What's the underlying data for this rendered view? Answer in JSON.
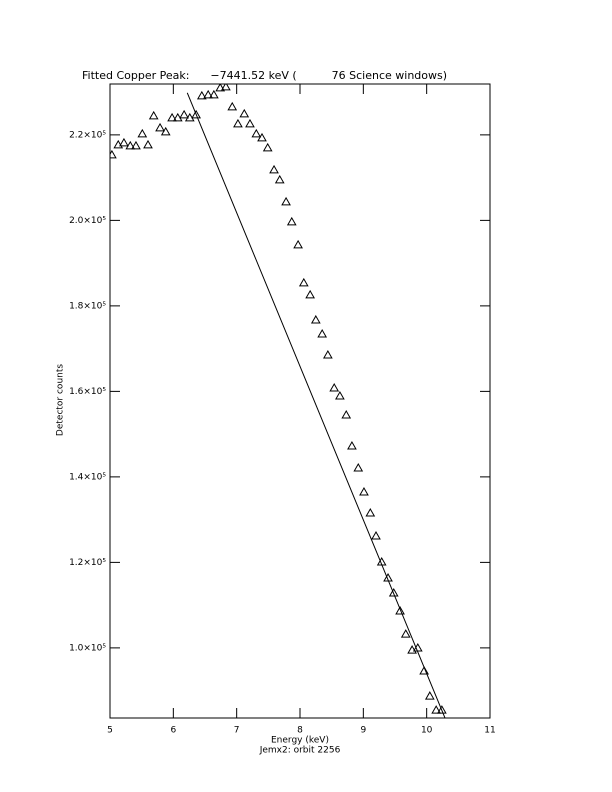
{
  "chart_data": {
    "type": "scatter",
    "title": "Fitted Copper Peak:      −7441.52 keV (          76 Science windows)",
    "xlabel": "Energy (keV)",
    "subtitle": "Jemx2: orbit 2256",
    "ylabel": "Detector counts",
    "xlim": [
      5,
      11
    ],
    "xticks": [
      5,
      6,
      7,
      8,
      9,
      10,
      11
    ],
    "ylim": [
      83600,
      231900
    ],
    "yticks": [
      {
        "value": 100000,
        "label": "1.0×10⁵"
      },
      {
        "value": 120000,
        "label": "1.2×10⁵"
      },
      {
        "value": 140000,
        "label": "1.4×10⁵"
      },
      {
        "value": 160000,
        "label": "1.6×10⁵"
      },
      {
        "value": 180000,
        "label": "1.8×10⁵"
      },
      {
        "value": 200000,
        "label": "2.0×10⁵"
      },
      {
        "value": 220000,
        "label": "2.2×10⁵"
      }
    ],
    "series": [
      {
        "style": "triangle",
        "color": "#000000",
        "x": [
          5.03,
          5.13,
          5.22,
          5.32,
          5.41,
          5.51,
          5.6,
          5.69,
          5.79,
          5.88,
          5.98,
          6.07,
          6.17,
          6.26,
          6.36,
          6.45,
          6.55,
          6.64,
          6.74,
          6.83,
          6.93,
          7.02,
          7.12,
          7.21,
          7.31,
          7.4,
          7.49,
          7.59,
          7.68,
          7.78,
          7.87,
          7.97,
          8.06,
          8.16,
          8.25,
          8.35,
          8.44,
          8.54,
          8.63,
          8.73,
          8.82,
          8.92,
          9.01,
          9.11,
          9.2,
          9.29,
          9.39,
          9.48,
          9.58,
          9.67,
          9.77,
          9.86,
          9.96,
          10.05,
          10.15,
          10.24
        ],
        "values": [
          215320,
          217660,
          218130,
          217430,
          217430,
          220230,
          217660,
          224450,
          221640,
          220700,
          223980,
          223980,
          224680,
          223980,
          224680,
          229130,
          229360,
          229360,
          231000,
          231230,
          226550,
          222570,
          224910,
          222570,
          220230,
          219300,
          216960,
          211810,
          209470,
          204320,
          199640,
          194260,
          185370,
          182560,
          176710,
          173430,
          168520,
          160800,
          158930,
          154480,
          147230,
          142080,
          136460,
          131550,
          126170,
          120080,
          116340,
          112830,
          108620,
          103230,
          99490,
          99960,
          94580,
          88730,
          85450,
          85450
        ]
      },
      {
        "style": "line",
        "color": "#000000",
        "x": [
          6.22,
          10.29
        ],
        "values": [
          229830,
          83580
        ]
      }
    ]
  }
}
